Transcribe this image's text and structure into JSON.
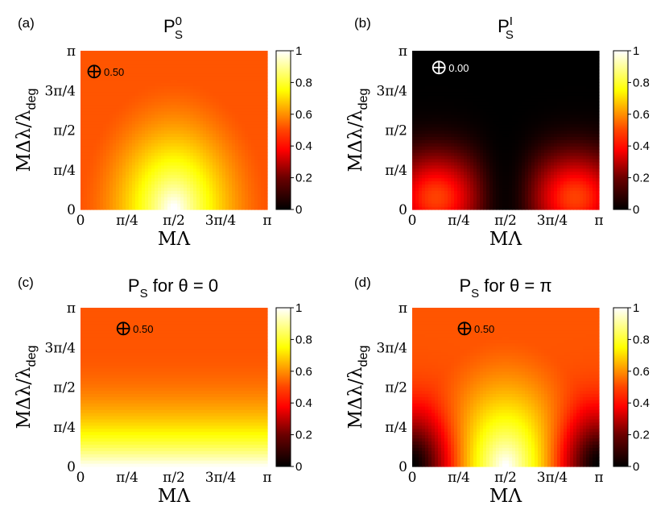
{
  "chart_data": [
    {
      "type": "heatmap",
      "panel_label": "(a)",
      "title_base": "P",
      "title_sub": "S",
      "title_sup": "0",
      "title_rest": "",
      "xlabel": "MΛ",
      "ylabel_main": "MΔλ/λ",
      "ylabel_sub": "deg",
      "x_ticks": [
        "0",
        "π/4",
        "π/2",
        "3π/4",
        "π"
      ],
      "y_ticks": [
        "0",
        "π/4",
        "π/2",
        "3π/4",
        "π"
      ],
      "xlim": [
        0,
        3.1416
      ],
      "ylim": [
        0,
        3.1416
      ],
      "colorbar": {
        "min": 0,
        "max": 1,
        "ticks": [
          "0",
          "0.2",
          "0.4",
          "0.6",
          "0.8",
          "1"
        ],
        "colormap": "hot"
      },
      "marker": {
        "symbol": "⊕",
        "label": "0.50",
        "x": 0.23,
        "y": 2.73,
        "color": "#000000"
      },
      "pattern": "hemisphere_bright",
      "background_value": 0.5,
      "peak_value": 1.0,
      "peak_location": [
        1.5708,
        0
      ]
    },
    {
      "type": "heatmap",
      "panel_label": "(b)",
      "title_base": "P",
      "title_sub": "S",
      "title_sup": "I",
      "title_rest": "",
      "xlabel": "MΛ",
      "ylabel_main": "MΔλ/λ",
      "ylabel_sub": "deg",
      "x_ticks": [
        "0",
        "π/4",
        "π/2",
        "3π/4",
        "π"
      ],
      "y_ticks": [
        "0",
        "π/4",
        "π/2",
        "3π/4",
        "π"
      ],
      "xlim": [
        0,
        3.1416
      ],
      "ylim": [
        0,
        3.1416
      ],
      "colorbar": {
        "min": 0,
        "max": 1,
        "ticks": [
          "0",
          "0.2",
          "0.4",
          "0.6",
          "0.8",
          "1"
        ],
        "colormap": "hot"
      },
      "marker": {
        "symbol": "⊕",
        "label": "0.00",
        "x": 0.45,
        "y": 2.81,
        "color": "#ffffff"
      },
      "pattern": "two_lobes",
      "background_value": 0.0,
      "peak_value": 0.45,
      "peak_locations": [
        [
          0.4,
          0.25
        ],
        [
          2.74,
          0.25
        ]
      ]
    },
    {
      "type": "heatmap",
      "panel_label": "(c)",
      "title_base": "P",
      "title_sub": "S",
      "title_sup": "",
      "title_rest": "  for θ = 0",
      "xlabel": "MΛ",
      "ylabel_main": "MΔλ/λ",
      "ylabel_sub": "deg",
      "x_ticks": [
        "0",
        "π/4",
        "π/2",
        "3π/4",
        "π"
      ],
      "y_ticks": [
        "0",
        "π/4",
        "π/2",
        "3π/4",
        "π"
      ],
      "xlim": [
        0,
        3.1416
      ],
      "ylim": [
        0,
        3.1416
      ],
      "colorbar": {
        "min": 0,
        "max": 1,
        "ticks": [
          "0",
          "0.2",
          "0.4",
          "0.6",
          "0.8",
          "1"
        ],
        "colormap": "hot"
      },
      "marker": {
        "symbol": "⊕",
        "label": "0.50",
        "x": 0.72,
        "y": 2.73,
        "color": "#000000"
      },
      "pattern": "vertical_gradient",
      "background_value": 0.5,
      "peak_value": 1.0,
      "flat_above": 2.4
    },
    {
      "type": "heatmap",
      "panel_label": "(d)",
      "title_base": "P",
      "title_sub": "S",
      "title_sup": "",
      "title_rest": "  for θ = π",
      "xlabel": "MΛ",
      "ylabel_main": "MΔλ/λ",
      "ylabel_sub": "deg",
      "x_ticks": [
        "0",
        "π/4",
        "π/2",
        "3π/4",
        "π"
      ],
      "y_ticks": [
        "0",
        "π/4",
        "π/2",
        "3π/4",
        "π"
      ],
      "xlim": [
        0,
        3.1416
      ],
      "ylim": [
        0,
        3.1416
      ],
      "colorbar": {
        "min": 0,
        "max": 1,
        "ticks": [
          "0",
          "0.2",
          "0.4",
          "0.6",
          "0.8",
          "1"
        ],
        "colormap": "hot"
      },
      "marker": {
        "symbol": "⊕",
        "label": "0.50",
        "x": 0.88,
        "y": 2.73,
        "color": "#000000"
      },
      "pattern": "hemisphere_bright_dark_corners",
      "background_value": 0.5,
      "peak_value": 1.0,
      "peak_location": [
        1.5708,
        0
      ],
      "min_locations": [
        [
          0,
          0
        ],
        [
          3.1416,
          0
        ]
      ]
    }
  ]
}
